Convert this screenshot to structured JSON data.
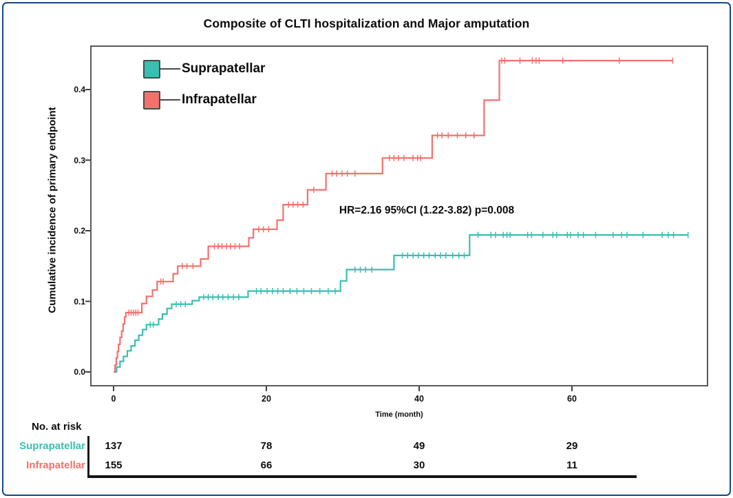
{
  "chart_data": {
    "type": "line",
    "subtype": "cumulative-incidence-step (Kaplan-Meier style)",
    "title": "Composite of CLTI hospitalization and Major amputation",
    "xlabel": "Time (month)",
    "ylabel": "Cumulative incidence of primary endpoint",
    "annotation": "HR=2.16 95%CI (1.22-3.82) p=0.008",
    "xlim": [
      0,
      78
    ],
    "ylim": [
      0,
      0.46
    ],
    "xticks": [
      0,
      20,
      40,
      60
    ],
    "yticks": [
      0.0,
      0.1,
      0.2,
      0.3,
      0.4
    ],
    "grid": false,
    "legend_position": "top-left",
    "series": [
      {
        "name": "Suprapatellar",
        "color": "#3bbdb1",
        "points": [
          [
            0,
            0
          ],
          [
            0.4,
            0.007
          ],
          [
            0.85,
            0.015
          ],
          [
            1.3,
            0.022
          ],
          [
            1.8,
            0.03
          ],
          [
            2.3,
            0.037
          ],
          [
            2.8,
            0.045
          ],
          [
            3.3,
            0.052
          ],
          [
            3.8,
            0.06
          ],
          [
            4.3,
            0.067
          ],
          [
            5.9,
            0.075
          ],
          [
            6.4,
            0.082
          ],
          [
            7.0,
            0.09
          ],
          [
            7.6,
            0.096
          ],
          [
            10.3,
            0.101
          ],
          [
            11.2,
            0.106
          ],
          [
            17.6,
            0.1145
          ],
          [
            29.7,
            0.129
          ],
          [
            30.5,
            0.145
          ],
          [
            36.7,
            0.165
          ],
          [
            46.6,
            0.194
          ]
        ],
        "end_time": 75.2,
        "final_value": 0.194,
        "censor_marks": [
          [
            4.8,
            0.067
          ],
          [
            5.2,
            0.067
          ],
          [
            8.2,
            0.096
          ],
          [
            8.8,
            0.096
          ],
          [
            9.4,
            0.096
          ],
          [
            11.8,
            0.106
          ],
          [
            12.4,
            0.106
          ],
          [
            13.0,
            0.106
          ],
          [
            13.7,
            0.106
          ],
          [
            14.3,
            0.106
          ],
          [
            15.0,
            0.106
          ],
          [
            15.7,
            0.106
          ],
          [
            16.4,
            0.106
          ],
          [
            18.7,
            0.1145
          ],
          [
            19.3,
            0.1145
          ],
          [
            20.1,
            0.1145
          ],
          [
            20.8,
            0.1145
          ],
          [
            21.5,
            0.1145
          ],
          [
            22.2,
            0.1145
          ],
          [
            23.1,
            0.1145
          ],
          [
            24.0,
            0.1145
          ],
          [
            24.9,
            0.1145
          ],
          [
            25.9,
            0.1145
          ],
          [
            27.0,
            0.1145
          ],
          [
            28.1,
            0.1145
          ],
          [
            29.0,
            0.1145
          ],
          [
            31.6,
            0.145
          ],
          [
            32.3,
            0.145
          ],
          [
            33.0,
            0.145
          ],
          [
            33.8,
            0.145
          ],
          [
            37.8,
            0.165
          ],
          [
            38.5,
            0.165
          ],
          [
            39.2,
            0.165
          ],
          [
            39.9,
            0.165
          ],
          [
            40.6,
            0.165
          ],
          [
            41.3,
            0.165
          ],
          [
            42.1,
            0.165
          ],
          [
            42.8,
            0.165
          ],
          [
            43.5,
            0.165
          ],
          [
            44.4,
            0.165
          ],
          [
            45.2,
            0.165
          ],
          [
            45.9,
            0.165
          ],
          [
            47.7,
            0.194
          ],
          [
            49.4,
            0.194
          ],
          [
            50.0,
            0.194
          ],
          [
            51.0,
            0.194
          ],
          [
            51.5,
            0.194
          ],
          [
            51.9,
            0.194
          ],
          [
            54.2,
            0.194
          ],
          [
            54.7,
            0.194
          ],
          [
            56.2,
            0.194
          ],
          [
            57.5,
            0.194
          ],
          [
            58.0,
            0.194
          ],
          [
            59.4,
            0.194
          ],
          [
            59.8,
            0.194
          ],
          [
            60.8,
            0.194
          ],
          [
            61.5,
            0.194
          ],
          [
            63.1,
            0.194
          ],
          [
            65.4,
            0.194
          ],
          [
            66.5,
            0.194
          ],
          [
            67.2,
            0.194
          ],
          [
            69.3,
            0.194
          ],
          [
            71.8,
            0.194
          ],
          [
            72.6,
            0.194
          ],
          [
            73.3,
            0.194
          ],
          [
            75.2,
            0.194
          ]
        ]
      },
      {
        "name": "Infrapatellar",
        "color": "#f2716c",
        "points": [
          [
            0,
            0
          ],
          [
            0.2,
            0.01
          ],
          [
            0.35,
            0.02
          ],
          [
            0.5,
            0.029
          ],
          [
            0.65,
            0.039
          ],
          [
            0.85,
            0.049
          ],
          [
            1.05,
            0.058
          ],
          [
            1.25,
            0.068
          ],
          [
            1.45,
            0.078
          ],
          [
            1.6,
            0.084
          ],
          [
            3.7,
            0.097
          ],
          [
            4.3,
            0.107
          ],
          [
            5.1,
            0.116
          ],
          [
            5.7,
            0.128
          ],
          [
            7.8,
            0.139
          ],
          [
            8.4,
            0.15
          ],
          [
            11.4,
            0.16
          ],
          [
            12.4,
            0.178
          ],
          [
            17.7,
            0.19
          ],
          [
            18.3,
            0.202
          ],
          [
            21.4,
            0.215
          ],
          [
            22.2,
            0.237
          ],
          [
            25.4,
            0.258
          ],
          [
            27.8,
            0.281
          ],
          [
            35.2,
            0.303
          ],
          [
            41.7,
            0.335
          ],
          [
            48.5,
            0.385
          ],
          [
            50.5,
            0.441
          ]
        ],
        "end_time": 73.2,
        "final_value": 0.441,
        "censor_marks": [
          [
            2.0,
            0.084
          ],
          [
            2.3,
            0.084
          ],
          [
            2.6,
            0.084
          ],
          [
            2.9,
            0.084
          ],
          [
            3.2,
            0.084
          ],
          [
            6.2,
            0.128
          ],
          [
            6.5,
            0.128
          ],
          [
            9.0,
            0.15
          ],
          [
            9.6,
            0.15
          ],
          [
            10.4,
            0.15
          ],
          [
            13.2,
            0.178
          ],
          [
            13.7,
            0.178
          ],
          [
            14.2,
            0.178
          ],
          [
            14.8,
            0.178
          ],
          [
            15.3,
            0.178
          ],
          [
            15.9,
            0.178
          ],
          [
            16.5,
            0.178
          ],
          [
            19.0,
            0.202
          ],
          [
            19.6,
            0.202
          ],
          [
            20.3,
            0.202
          ],
          [
            22.9,
            0.237
          ],
          [
            23.5,
            0.237
          ],
          [
            24.1,
            0.237
          ],
          [
            24.8,
            0.237
          ],
          [
            26.2,
            0.258
          ],
          [
            28.6,
            0.281
          ],
          [
            29.2,
            0.281
          ],
          [
            29.9,
            0.281
          ],
          [
            30.6,
            0.281
          ],
          [
            31.6,
            0.281
          ],
          [
            36.1,
            0.303
          ],
          [
            36.7,
            0.303
          ],
          [
            37.3,
            0.303
          ],
          [
            38.0,
            0.303
          ],
          [
            39.2,
            0.303
          ],
          [
            39.8,
            0.303
          ],
          [
            40.2,
            0.303
          ],
          [
            42.4,
            0.335
          ],
          [
            43.0,
            0.335
          ],
          [
            43.8,
            0.335
          ],
          [
            45.0,
            0.335
          ],
          [
            46.1,
            0.335
          ],
          [
            47.2,
            0.335
          ],
          [
            50.8,
            0.441
          ],
          [
            51.2,
            0.441
          ],
          [
            53.2,
            0.441
          ],
          [
            54.8,
            0.441
          ],
          [
            55.3,
            0.441
          ],
          [
            55.7,
            0.441
          ],
          [
            58.8,
            0.441
          ],
          [
            66.2,
            0.441
          ],
          [
            73.2,
            0.441
          ]
        ]
      }
    ],
    "risk_table": {
      "header": "No. at risk",
      "times": [
        0,
        20,
        40,
        60
      ],
      "rows": [
        {
          "name": "Suprapatellar",
          "color": "#3bbdb1",
          "counts": [
            137,
            78,
            49,
            29
          ]
        },
        {
          "name": "Infrapatellar",
          "color": "#f2716c",
          "counts": [
            155,
            66,
            30,
            11
          ]
        }
      ]
    },
    "colors": {
      "plot_border": "#58595b",
      "outer_border": "#11497e",
      "axis_tick": "#3f3f3f",
      "text": "#0c0c0c"
    }
  }
}
